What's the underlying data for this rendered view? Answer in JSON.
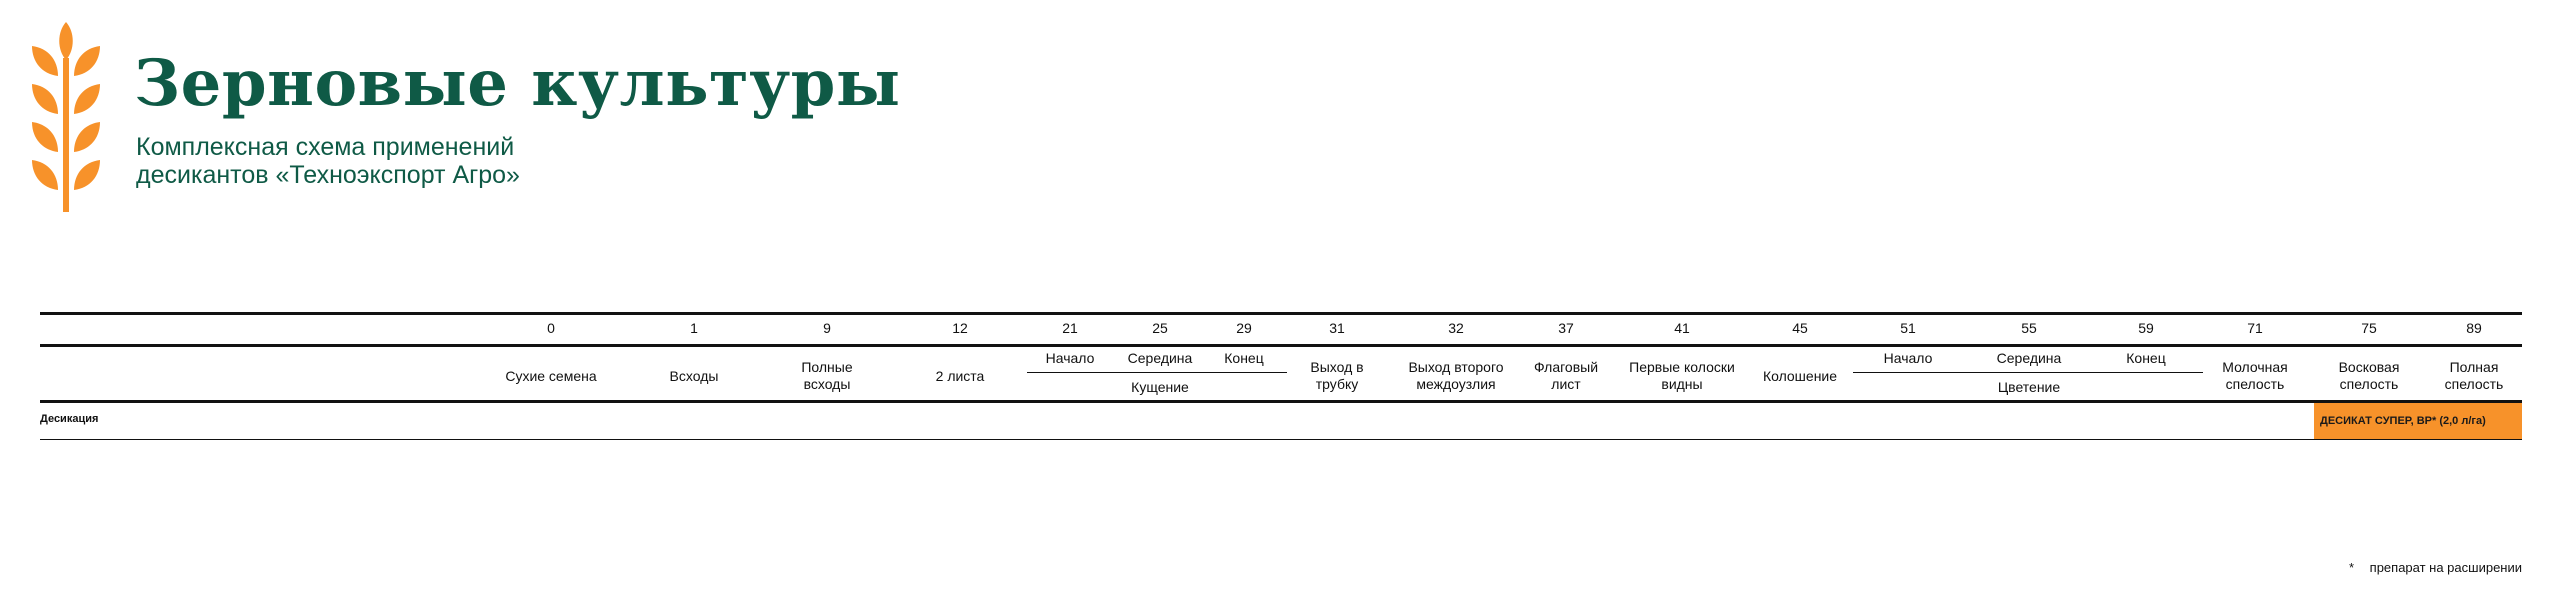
{
  "colors": {
    "brand_green": "#0f5a46",
    "accent_orange": "#f7922a"
  },
  "header": {
    "logo_icon": "wheat-ear-icon",
    "title": "Зерновые культуры",
    "subtitle_line1": "Комплексная схема применений",
    "subtitle_line2": "десикантов «Техноэкспорт Агро»"
  },
  "stages": [
    {
      "code": "0",
      "label": "Сухие семена"
    },
    {
      "code": "1",
      "label": "Всходы"
    },
    {
      "code": "9",
      "label": "Полные всходы"
    },
    {
      "code": "12",
      "label": "2 листа"
    },
    {
      "code": "21",
      "label": "Начало"
    },
    {
      "code": "25",
      "label": "Середина"
    },
    {
      "code": "29",
      "label": "Конец"
    },
    {
      "code": "31",
      "label": "Выход в трубку"
    },
    {
      "code": "32",
      "label": "Выход второго междоузлия"
    },
    {
      "code": "37",
      "label": "Флаговый лист"
    },
    {
      "code": "41",
      "label": "Первые колоски видны"
    },
    {
      "code": "45",
      "label": "Колошение"
    },
    {
      "code": "51",
      "label": "Начало"
    },
    {
      "code": "55",
      "label": "Середина"
    },
    {
      "code": "59",
      "label": "Конец"
    },
    {
      "code": "71",
      "label": "Молочная спелость"
    },
    {
      "code": "75",
      "label": "Восковая спелость"
    },
    {
      "code": "89",
      "label": "Полная спелость"
    }
  ],
  "groups": {
    "tillering": "Кущение",
    "flowering": "Цветение"
  },
  "rows": [
    {
      "label": "Десикация",
      "treatment": "ДЕСИКАТ СУПЕР, ВР* (2,0 л/га)",
      "stage_from": "75",
      "stage_to": "89"
    }
  ],
  "footnote": {
    "marker": "*",
    "text": "препарат на расширении"
  }
}
